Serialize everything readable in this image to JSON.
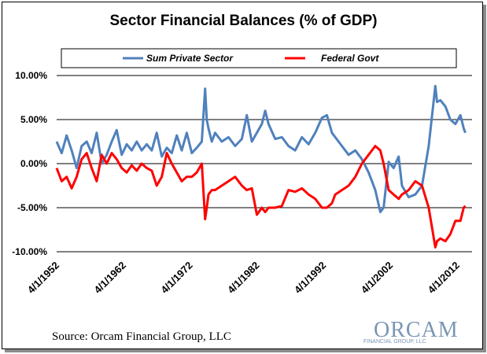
{
  "chart_data": {
    "type": "line",
    "title": "Sector Financial Balances (% of GDP)",
    "xlabel": "",
    "ylabel": "",
    "x_range": [
      1952.25,
      2014.5
    ],
    "ylim": [
      -10,
      10
    ],
    "y_ticks": [
      {
        "value": 10,
        "label": "10.00%"
      },
      {
        "value": 5,
        "label": "5.00%"
      },
      {
        "value": 0,
        "label": "0.00%"
      },
      {
        "value": -5,
        "label": "-5.00%"
      },
      {
        "value": -10,
        "label": "-10.00%"
      }
    ],
    "x_ticks": [
      {
        "value": 1952.25,
        "label": "4/1/1952"
      },
      {
        "value": 1962.25,
        "label": "4/1/1962"
      },
      {
        "value": 1972.25,
        "label": "4/1/1972"
      },
      {
        "value": 1982.25,
        "label": "4/1/1982"
      },
      {
        "value": 1992.25,
        "label": "4/1/1992"
      },
      {
        "value": 2002.25,
        "label": "4/1/2002"
      },
      {
        "value": 2012.25,
        "label": "4/1/2012"
      }
    ],
    "legend_position": "top",
    "series": [
      {
        "name": "Sum Private Sector",
        "color": "#4f81bd",
        "x": [
          1952.25,
          1953,
          1953.75,
          1954.5,
          1955.25,
          1956,
          1956.75,
          1957.5,
          1958.25,
          1959,
          1959.75,
          1960.5,
          1961.25,
          1962,
          1962.75,
          1963.5,
          1964.25,
          1965,
          1965.75,
          1966.5,
          1967.25,
          1968,
          1968.75,
          1969.5,
          1970.25,
          1971,
          1971.75,
          1972.5,
          1973.25,
          1974,
          1974.5,
          1974.75,
          1975,
          1975.5,
          1976,
          1977,
          1978,
          1979,
          1980,
          1980.75,
          1981.5,
          1982.25,
          1983,
          1983.5,
          1984,
          1985,
          1986,
          1987,
          1988,
          1989,
          1990,
          1991,
          1992,
          1992.75,
          1993.5,
          1994,
          1995,
          1996,
          1997,
          1998,
          1999,
          2000,
          2000.75,
          2001.25,
          2002,
          2002.75,
          2003.5,
          2004,
          2005,
          2006,
          2007,
          2008,
          2009,
          2009.25,
          2009.75,
          2010.5,
          2011.25,
          2012,
          2012.75,
          2013.25,
          2013.5
        ],
        "values": [
          2.5,
          1.2,
          3.2,
          1.5,
          -0.5,
          2.0,
          2.5,
          1.2,
          3.5,
          0.0,
          1.0,
          2.5,
          3.8,
          1.0,
          2.2,
          1.5,
          2.5,
          1.5,
          2.2,
          1.5,
          3.5,
          0.8,
          1.8,
          1.2,
          3.2,
          1.5,
          3.5,
          1.2,
          1.8,
          2.5,
          8.5,
          5.0,
          4.0,
          2.5,
          3.5,
          2.5,
          3.0,
          2.0,
          2.8,
          5.5,
          2.5,
          3.5,
          4.5,
          6.0,
          4.5,
          2.8,
          3.0,
          2.0,
          1.5,
          3.0,
          2.2,
          3.5,
          5.2,
          5.5,
          3.5,
          3.0,
          2.0,
          1.0,
          1.5,
          0.5,
          -1.0,
          -3.0,
          -5.5,
          -5.0,
          0.2,
          -0.5,
          0.8,
          -2.5,
          -3.8,
          -3.5,
          -2.5,
          2.0,
          8.8,
          7.0,
          7.2,
          6.5,
          5.0,
          4.5,
          5.5,
          4.0,
          3.5
        ]
      },
      {
        "name": "Federal Govt",
        "color": "#ff0000",
        "x": [
          1952.25,
          1953,
          1953.75,
          1954.5,
          1955.25,
          1956,
          1956.75,
          1957.5,
          1958.25,
          1959,
          1959.75,
          1960.5,
          1961.25,
          1962,
          1962.75,
          1963.5,
          1964.25,
          1965,
          1965.75,
          1966.5,
          1967.25,
          1968,
          1968.75,
          1969.5,
          1970.25,
          1971,
          1971.75,
          1972.5,
          1973.25,
          1974,
          1974.5,
          1974.75,
          1975,
          1975.5,
          1976,
          1977,
          1978,
          1979,
          1980,
          1980.75,
          1981.5,
          1982.25,
          1983,
          1983.5,
          1984,
          1985,
          1986,
          1987,
          1988,
          1989,
          1990,
          1991,
          1992,
          1992.75,
          1993.5,
          1994,
          1995,
          1996,
          1997,
          1998,
          1999,
          2000,
          2000.75,
          2001.25,
          2002,
          2002.75,
          2003.5,
          2004,
          2005,
          2006,
          2007,
          2008,
          2009,
          2009.25,
          2009.75,
          2010.5,
          2011.25,
          2012,
          2012.75,
          2013.25,
          2013.5
        ],
        "values": [
          -0.5,
          -2.0,
          -1.5,
          -2.8,
          -1.5,
          0.5,
          1.2,
          -0.5,
          -2.0,
          1.0,
          0.0,
          1.2,
          0.5,
          -0.5,
          -1.0,
          -0.2,
          -0.8,
          0.0,
          -0.5,
          -0.8,
          -2.5,
          -1.5,
          1.2,
          0.0,
          -1.0,
          -2.0,
          -1.5,
          -1.5,
          -1.0,
          0.0,
          -6.3,
          -5.0,
          -3.5,
          -3.0,
          -3.0,
          -2.5,
          -2.0,
          -1.5,
          -2.5,
          -3.0,
          -2.8,
          -5.8,
          -5.0,
          -5.5,
          -5.0,
          -5.0,
          -4.8,
          -3.0,
          -3.2,
          -2.8,
          -3.5,
          -4.0,
          -5.0,
          -5.0,
          -4.5,
          -3.5,
          -3.0,
          -2.5,
          -1.5,
          0.0,
          1.0,
          2.0,
          1.5,
          0.0,
          -3.0,
          -3.5,
          -4.0,
          -3.5,
          -3.0,
          -2.0,
          -2.5,
          -5.0,
          -9.5,
          -8.8,
          -8.5,
          -8.8,
          -8.0,
          -6.5,
          -6.5,
          -5.0,
          -4.8
        ]
      }
    ]
  },
  "source_text": "Source: Orcam Financial Group, LLC",
  "logo": {
    "name": "ORCAM",
    "tagline": "FINANCIAL GROUP, LLC"
  }
}
